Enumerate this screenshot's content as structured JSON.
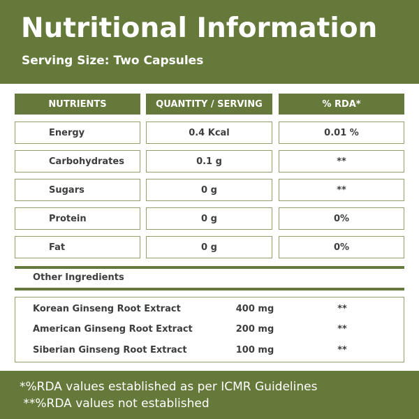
{
  "header": {
    "title": "Nutritional Information",
    "subtitle": "Serving Size: Two Capsules"
  },
  "table": {
    "columns": [
      "NUTRIENTS",
      "QUANTITY / SERVING",
      "% RDA*"
    ],
    "rows": [
      {
        "nutrient": "Energy",
        "quantity": "0.4 Kcal",
        "rda": "0.01 %"
      },
      {
        "nutrient": "Carbohydrates",
        "quantity": "0.1 g",
        "rda": "**"
      },
      {
        "nutrient": "Sugars",
        "quantity": "0 g",
        "rda": "**"
      },
      {
        "nutrient": "Protein",
        "quantity": "0 g",
        "rda": "0%"
      },
      {
        "nutrient": "Fat",
        "quantity": "0 g",
        "rda": "0%"
      }
    ]
  },
  "other_ingredients": {
    "label": "Other Ingredients",
    "items": [
      {
        "name": "Korean Ginseng Root Extract",
        "quantity": "400 mg",
        "rda": "**"
      },
      {
        "name": "American Ginseng Root Extract",
        "quantity": "200 mg",
        "rda": "**"
      },
      {
        "name": "Siberian Ginseng Root Extract",
        "quantity": "100 mg",
        "rda": "**"
      }
    ]
  },
  "footer": {
    "note1": "*%RDA values established as per ICMR Guidelines",
    "note2": " **%RDA values not established"
  },
  "colors": {
    "brand_green": "#65793a",
    "border_green": "#8fa06b",
    "text": "#3d3d3d"
  }
}
